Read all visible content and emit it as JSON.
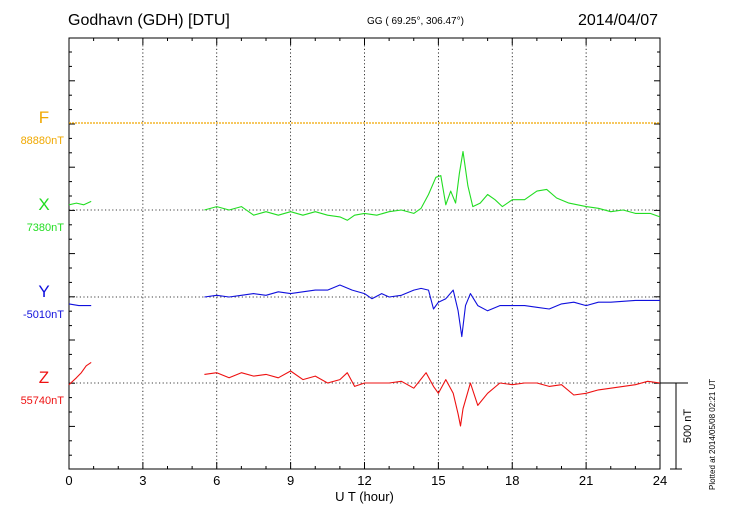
{
  "header": {
    "station": "Godhavn (GDH)  [DTU]",
    "coords": "GG ( 69.25°, 306.47°)",
    "date": "2014/04/07"
  },
  "footer": {
    "plotted": "Plotted at 2014/05/08 02:21  UT"
  },
  "colors": {
    "F": "#f0a800",
    "X": "#22dd22",
    "Y": "#1010dd",
    "Z": "#ee1111",
    "axis": "#000000"
  },
  "chart_data": {
    "type": "line",
    "title": "Godhavn (GDH)  [DTU]",
    "xlabel": "U T (hour)",
    "ylabel": "",
    "xlim": [
      0,
      24
    ],
    "x_ticks": [
      "0",
      "3",
      "6",
      "9",
      "12",
      "15",
      "18",
      "21",
      "24"
    ],
    "grid": true,
    "scale_bar": {
      "label": "500 nT",
      "value_nT": 500
    },
    "series": [
      {
        "name": "F",
        "baseline_label": "88880nT",
        "baseline_nT": 88880,
        "points": [
          [
            0,
            0
          ],
          [
            24,
            0
          ]
        ]
      },
      {
        "name": "X",
        "baseline_label": "7380nT",
        "baseline_nT": 7380,
        "points": [
          [
            0.0,
            30
          ],
          [
            0.3,
            40
          ],
          [
            0.6,
            30
          ],
          [
            0.9,
            50
          ],
          null,
          [
            5.5,
            0
          ],
          [
            6.0,
            20
          ],
          [
            6.5,
            0
          ],
          [
            7.0,
            20
          ],
          [
            7.5,
            -30
          ],
          [
            8.0,
            -10
          ],
          [
            8.5,
            -30
          ],
          [
            9.0,
            -10
          ],
          [
            9.5,
            -30
          ],
          [
            10.0,
            -10
          ],
          [
            10.5,
            -30
          ],
          [
            11.0,
            -40
          ],
          [
            11.3,
            -60
          ],
          [
            11.6,
            -30
          ],
          [
            12.0,
            -20
          ],
          [
            12.5,
            -30
          ],
          [
            13.0,
            -10
          ],
          [
            13.5,
            0
          ],
          [
            14.0,
            -20
          ],
          [
            14.3,
            10
          ],
          [
            14.6,
            90
          ],
          [
            14.9,
            190
          ],
          [
            15.1,
            200
          ],
          [
            15.3,
            30
          ],
          [
            15.5,
            110
          ],
          [
            15.7,
            40
          ],
          [
            15.85,
            210
          ],
          [
            16.0,
            340
          ],
          [
            16.2,
            140
          ],
          [
            16.4,
            20
          ],
          [
            16.7,
            40
          ],
          [
            17.0,
            90
          ],
          [
            17.3,
            60
          ],
          [
            17.6,
            20
          ],
          [
            18.0,
            60
          ],
          [
            18.5,
            60
          ],
          [
            19.0,
            110
          ],
          [
            19.4,
            120
          ],
          [
            19.8,
            70
          ],
          [
            20.3,
            40
          ],
          [
            21.0,
            20
          ],
          [
            21.5,
            10
          ],
          [
            22.0,
            -10
          ],
          [
            22.5,
            0
          ],
          [
            23.0,
            -20
          ],
          [
            23.6,
            -20
          ],
          [
            24.0,
            -40
          ]
        ]
      },
      {
        "name": "Y",
        "baseline_label": "-5010nT",
        "baseline_nT": -5010,
        "points": [
          [
            0.0,
            -40
          ],
          [
            0.4,
            -50
          ],
          [
            0.9,
            -50
          ],
          null,
          [
            5.5,
            0
          ],
          [
            6.0,
            10
          ],
          [
            6.5,
            0
          ],
          [
            7.0,
            10
          ],
          [
            7.5,
            20
          ],
          [
            8.0,
            10
          ],
          [
            8.5,
            30
          ],
          [
            9.0,
            20
          ],
          [
            9.5,
            30
          ],
          [
            10.0,
            40
          ],
          [
            10.5,
            40
          ],
          [
            11.0,
            70
          ],
          [
            11.5,
            40
          ],
          [
            12.0,
            20
          ],
          [
            12.3,
            -10
          ],
          [
            12.7,
            20
          ],
          [
            13.0,
            0
          ],
          [
            13.5,
            10
          ],
          [
            14.0,
            40
          ],
          [
            14.3,
            50
          ],
          [
            14.6,
            40
          ],
          [
            14.8,
            -70
          ],
          [
            15.0,
            -30
          ],
          [
            15.3,
            -10
          ],
          [
            15.6,
            40
          ],
          [
            15.8,
            -80
          ],
          [
            15.95,
            -230
          ],
          [
            16.1,
            -50
          ],
          [
            16.3,
            20
          ],
          [
            16.6,
            -50
          ],
          [
            17.0,
            -80
          ],
          [
            17.5,
            -50
          ],
          [
            18.0,
            -50
          ],
          [
            18.5,
            -50
          ],
          [
            19.0,
            -60
          ],
          [
            19.5,
            -70
          ],
          [
            20.0,
            -40
          ],
          [
            20.5,
            -30
          ],
          [
            21.0,
            -50
          ],
          [
            21.5,
            -30
          ],
          [
            22.0,
            -30
          ],
          [
            23.0,
            -20
          ],
          [
            24.0,
            -20
          ]
        ]
      },
      {
        "name": "Z",
        "baseline_label": "55740nT",
        "baseline_nT": 55740,
        "points": [
          [
            0.0,
            -10
          ],
          [
            0.3,
            30
          ],
          [
            0.5,
            60
          ],
          [
            0.7,
            100
          ],
          [
            0.9,
            120
          ],
          null,
          [
            5.5,
            50
          ],
          [
            6.0,
            60
          ],
          [
            6.5,
            30
          ],
          [
            7.0,
            60
          ],
          [
            7.5,
            40
          ],
          [
            8.0,
            50
          ],
          [
            8.5,
            30
          ],
          [
            9.0,
            70
          ],
          [
            9.5,
            20
          ],
          [
            10.0,
            40
          ],
          [
            10.5,
            0
          ],
          [
            11.0,
            20
          ],
          [
            11.3,
            60
          ],
          [
            11.6,
            -20
          ],
          [
            12.0,
            0
          ],
          [
            12.5,
            0
          ],
          [
            13.0,
            0
          ],
          [
            13.5,
            10
          ],
          [
            14.0,
            -30
          ],
          [
            14.5,
            60
          ],
          [
            14.8,
            -20
          ],
          [
            15.0,
            -60
          ],
          [
            15.3,
            20
          ],
          [
            15.6,
            -60
          ],
          [
            15.8,
            -180
          ],
          [
            15.9,
            -250
          ],
          [
            16.0,
            -150
          ],
          [
            16.3,
            0
          ],
          [
            16.6,
            -130
          ],
          [
            17.0,
            -60
          ],
          [
            17.5,
            0
          ],
          [
            18.0,
            -10
          ],
          [
            18.5,
            0
          ],
          [
            19.0,
            0
          ],
          [
            19.5,
            -20
          ],
          [
            20.0,
            -10
          ],
          [
            20.5,
            -70
          ],
          [
            21.0,
            -60
          ],
          [
            21.5,
            -40
          ],
          [
            22.0,
            -30
          ],
          [
            23.0,
            -10
          ],
          [
            23.5,
            10
          ],
          [
            24.0,
            0
          ]
        ]
      }
    ]
  }
}
